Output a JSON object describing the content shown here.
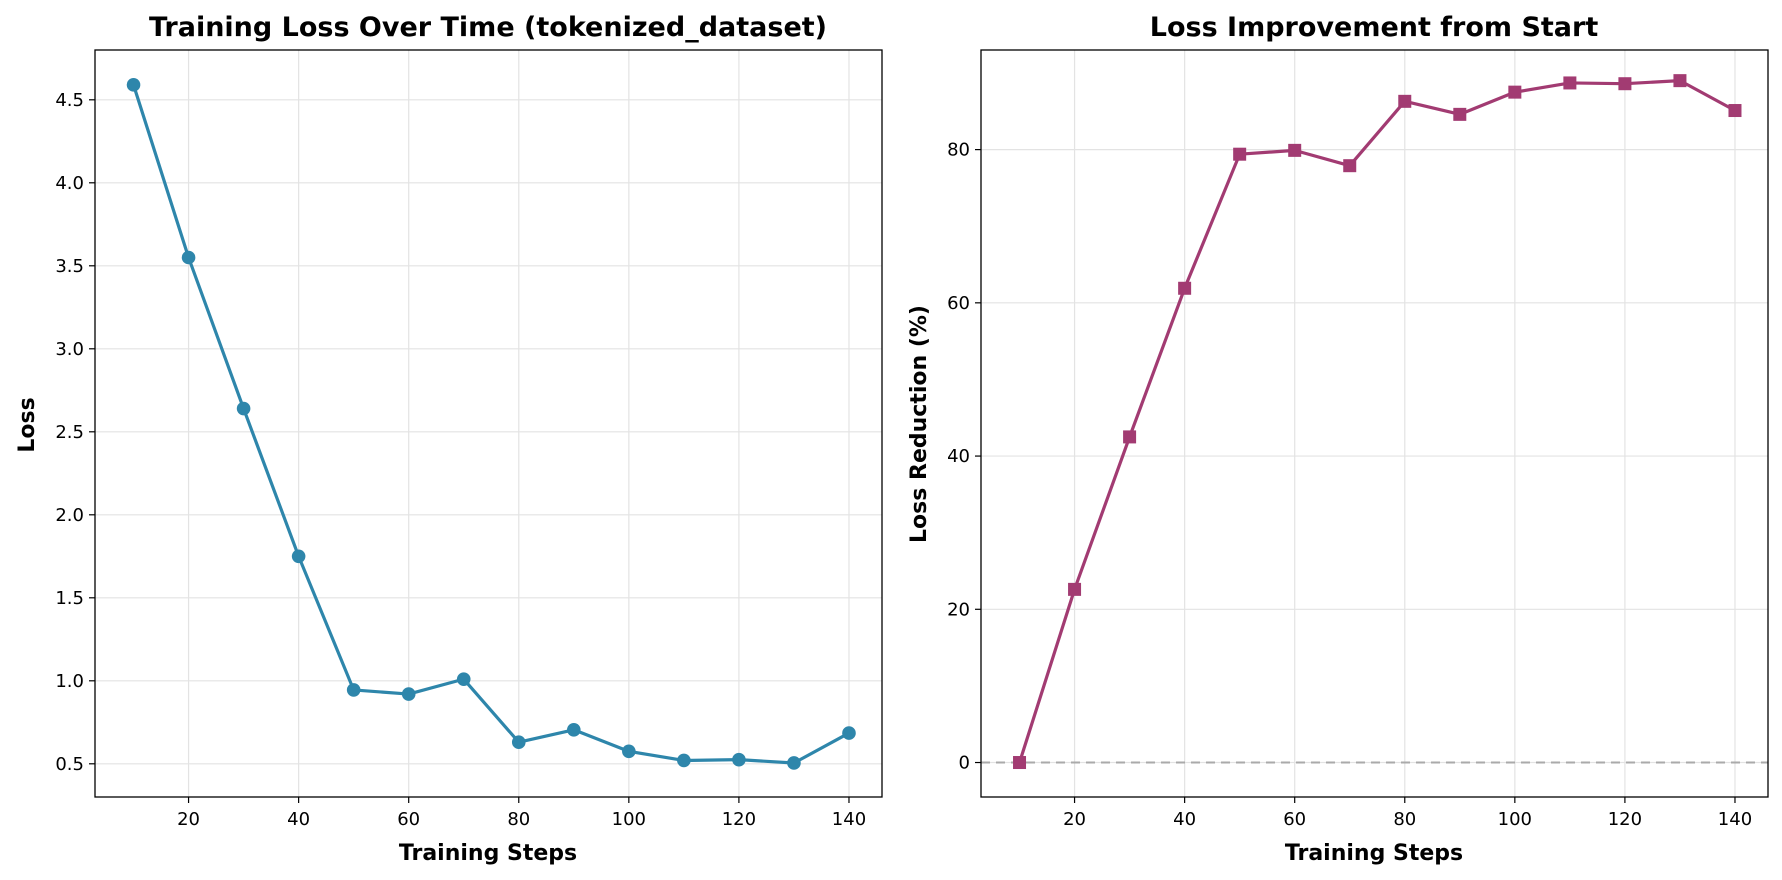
{
  "chart_data": [
    {
      "type": "line",
      "title": "Training Loss Over Time (tokenized_dataset)",
      "xlabel": "Training Steps",
      "ylabel": "Loss",
      "xlim": [
        3,
        146
      ],
      "ylim": [
        0.3,
        4.8
      ],
      "xticks": [
        20,
        40,
        60,
        80,
        100,
        120,
        140
      ],
      "yticks": [
        0.5,
        1.0,
        1.5,
        2.0,
        2.5,
        3.0,
        3.5,
        4.0,
        4.5
      ],
      "ytick_format": "one_decimal",
      "grid": true,
      "legend": "none",
      "series": [
        {
          "color": "#2e86ab",
          "marker": "circle",
          "x": [
            10,
            20,
            30,
            40,
            50,
            60,
            70,
            80,
            90,
            100,
            110,
            120,
            130,
            140
          ],
          "values": [
            4.59,
            3.55,
            2.64,
            1.75,
            0.945,
            0.92,
            1.01,
            0.63,
            0.705,
            0.575,
            0.52,
            0.525,
            0.505,
            0.685
          ]
        }
      ]
    },
    {
      "type": "line",
      "title": "Loss Improvement from Start",
      "xlabel": "Training Steps",
      "ylabel": "Loss Reduction (%)",
      "xlim": [
        3,
        146
      ],
      "ylim": [
        -4.5,
        93
      ],
      "xticks": [
        20,
        40,
        60,
        80,
        100,
        120,
        140
      ],
      "yticks": [
        0,
        20,
        40,
        60,
        80
      ],
      "ytick_format": "integer",
      "grid": true,
      "legend": "none",
      "reference_line": {
        "y": 0,
        "style": "dashed",
        "color": "#aaaaaa"
      },
      "series": [
        {
          "color": "#a23b72",
          "marker": "square",
          "x": [
            10,
            20,
            30,
            40,
            50,
            60,
            70,
            80,
            90,
            100,
            110,
            120,
            130,
            140
          ],
          "values": [
            0,
            22.6,
            42.5,
            61.9,
            79.4,
            79.9,
            77.9,
            86.3,
            84.6,
            87.5,
            88.7,
            88.6,
            89.0,
            85.1
          ]
        }
      ]
    }
  ]
}
